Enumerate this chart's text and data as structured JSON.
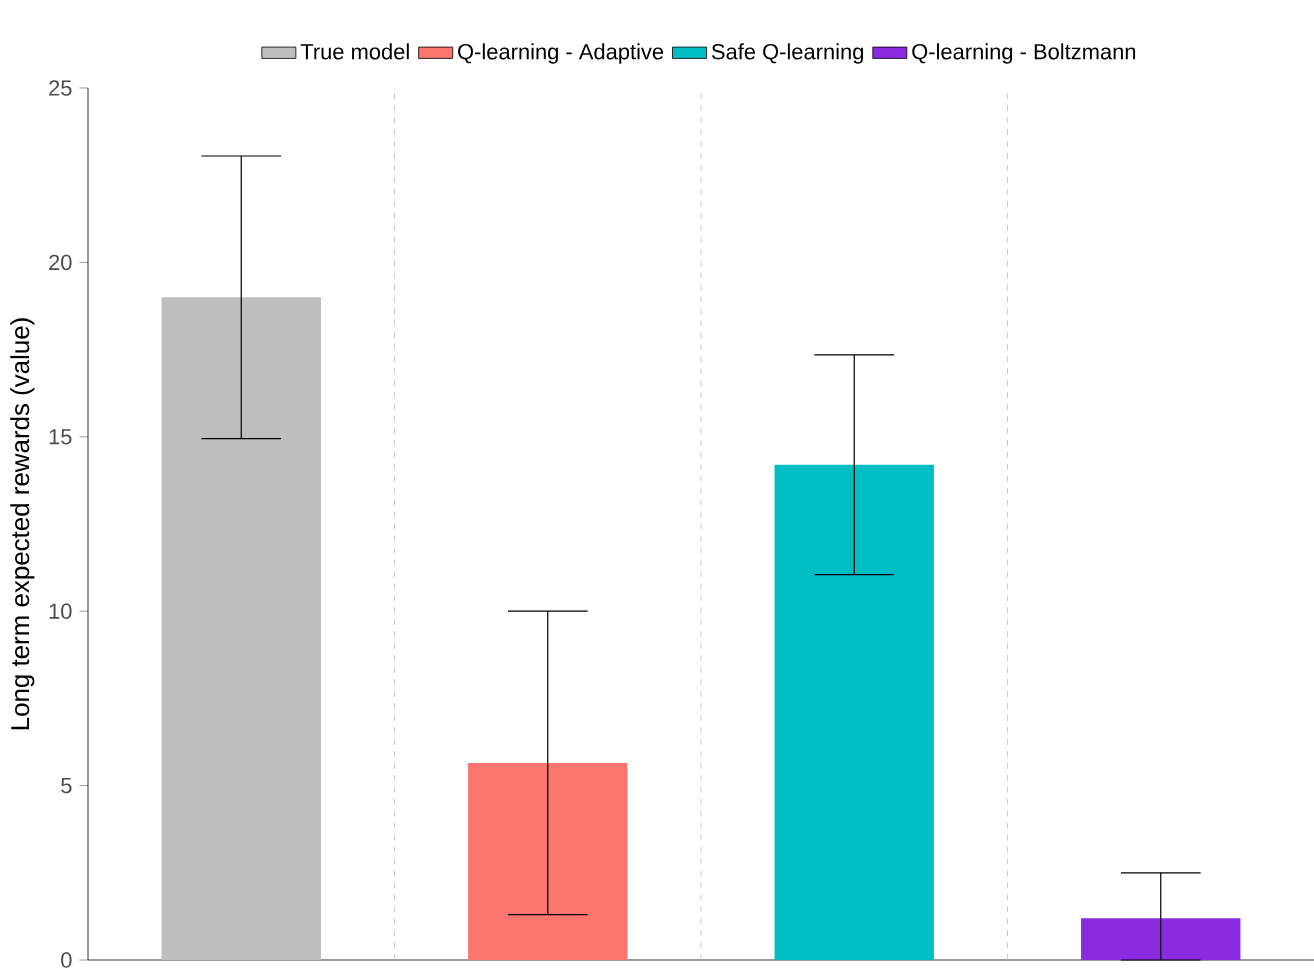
{
  "chart_data": {
    "type": "bar",
    "ylabel": "Long term expected rewards (value)",
    "categories": [
      null,
      null,
      null,
      null
    ],
    "series": [
      {
        "name": "True model",
        "color": "#bebebe",
        "values": [
          19.0,
          null,
          null,
          null
        ],
        "errors": [
          [
            14.95,
            23.05
          ],
          null,
          null,
          null
        ]
      },
      {
        "name": "Q-learning - Adaptive",
        "color": "#f8766d",
        "values": [
          null,
          5.65,
          null,
          null
        ],
        "errors": [
          null,
          [
            1.3,
            10.0
          ],
          null,
          null
        ]
      },
      {
        "name": "Safe Q-learning",
        "color": "#00bfc4",
        "values": [
          null,
          null,
          14.2,
          null
        ],
        "errors": [
          null,
          null,
          [
            11.05,
            17.35
          ],
          null
        ]
      },
      {
        "name": "Q-learning - Boltzmann",
        "color": "#8a2be2",
        "values": [
          null,
          null,
          null,
          1.2
        ],
        "errors": [
          null,
          null,
          null,
          [
            0,
            2.5
          ]
        ]
      }
    ],
    "ylim": [
      0,
      25
    ],
    "yticks": [
      0,
      5,
      10,
      15,
      20,
      25
    ],
    "grid": "x",
    "legend": "top"
  }
}
